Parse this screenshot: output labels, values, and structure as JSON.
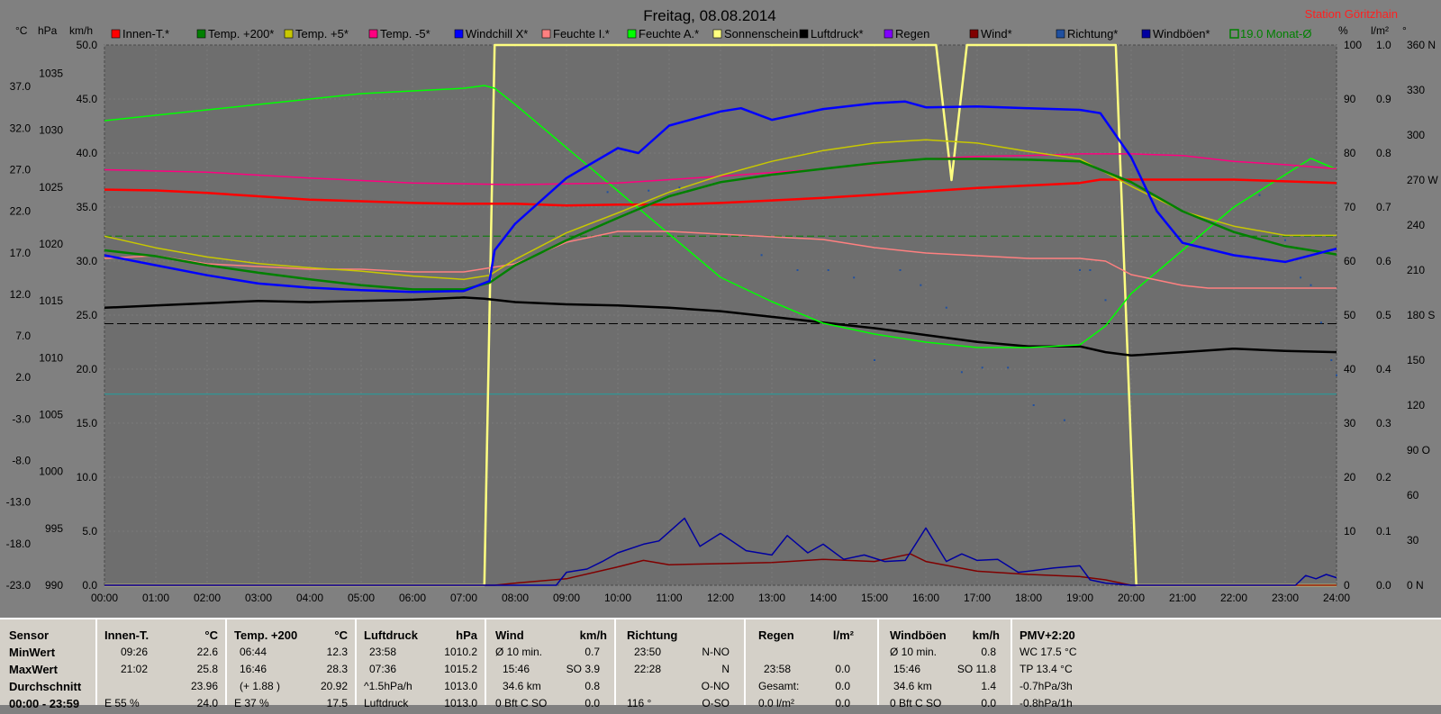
{
  "header": {
    "title": "Freitag, 08.08.2014",
    "station": "Station Göritzhain"
  },
  "axis_units": {
    "temp": "°C",
    "hpa": "hPa",
    "kmh": "km/h",
    "pct": "%",
    "lm2": "l/m²",
    "deg": "°"
  },
  "legend": [
    {
      "label": "Innen-T.*",
      "color": "#ff0000"
    },
    {
      "label": "Temp. +200*",
      "color": "#008000"
    },
    {
      "label": "Temp. +5*",
      "color": "#c8c800"
    },
    {
      "label": "Temp. -5*",
      "color": "#ff0080"
    },
    {
      "label": "Windchill X*",
      "color": "#0000ff"
    },
    {
      "label": "Feuchte I.*",
      "color": "#ff8080"
    },
    {
      "label": "Feuchte A.*",
      "color": "#00ff00"
    },
    {
      "label": "Sonnenschein",
      "color": "#ffff80"
    },
    {
      "label": "Luftdruck*",
      "color": "#000000"
    },
    {
      "label": "Regen",
      "color": "#8000ff"
    },
    {
      "label": "Wind*",
      "color": "#800000"
    },
    {
      "label": "Richtung*",
      "color": "#2050a0"
    },
    {
      "label": "Windböen*",
      "color": "#0000a0"
    },
    {
      "label": "19.0 Monat-Ø",
      "color": "#008000"
    }
  ],
  "chart_data": {
    "type": "line",
    "title": "Freitag, 08.08.2014",
    "x_ticks": [
      "00:00",
      "01:00",
      "02:00",
      "03:00",
      "04:00",
      "05:00",
      "06:00",
      "07:00",
      "08:00",
      "09:00",
      "10:00",
      "11:00",
      "12:00",
      "13:00",
      "14:00",
      "15:00",
      "16:00",
      "17:00",
      "18:00",
      "19:00",
      "20:00",
      "21:00",
      "22:00",
      "23:00",
      "24:00"
    ],
    "xlim": [
      0,
      24
    ],
    "y_axes": {
      "temp_c": {
        "ylim": [
          -23,
          42
        ],
        "ticks": [
          "37.0",
          "32.0",
          "27.0",
          "22.0",
          "17.0",
          "12.0",
          "7.0",
          "2.0",
          "-3.0",
          "-8.0",
          "-13.0",
          "-18.0",
          "-23.0"
        ]
      },
      "hpa": {
        "ylim": [
          990,
          1037.5
        ],
        "ticks": [
          "1035",
          "1030",
          "1025",
          "1020",
          "1015",
          "1010",
          "1005",
          "1000",
          "995",
          "990"
        ]
      },
      "kmh": {
        "ylim": [
          0,
          50
        ],
        "ticks": [
          "50.0",
          "45.0",
          "40.0",
          "35.0",
          "30.0",
          "25.0",
          "20.0",
          "15.0",
          "10.0",
          "5.0",
          "0.0"
        ]
      },
      "pct": {
        "ylim": [
          0,
          100
        ],
        "ticks": [
          "100",
          "90",
          "80",
          "70",
          "60",
          "50",
          "40",
          "30",
          "20",
          "10",
          "0"
        ]
      },
      "lm2": {
        "ylim": [
          0,
          1
        ],
        "ticks": [
          "1.0",
          "0.9",
          "0.8",
          "0.7",
          "0.6",
          "0.5",
          "0.4",
          "0.3",
          "0.2",
          "0.1",
          "0.0"
        ]
      },
      "deg": {
        "ylim": [
          0,
          360
        ],
        "ticks": [
          "360 N",
          "330",
          "300",
          "270 W",
          "240",
          "210",
          "180 S",
          "150",
          "120",
          "90 O",
          "60",
          "30",
          "0 N"
        ]
      }
    },
    "reference_lines": [
      {
        "name": "19.0 Monat-Ø",
        "axis": "temp_c",
        "value": 19.0,
        "color": "#008000"
      },
      {
        "axis": "hpa",
        "value": 1013.0,
        "color": "#000000"
      },
      {
        "axis": "temp_c",
        "value": 0.0,
        "color": "#20a0a0"
      }
    ],
    "series": [
      {
        "name": "Innen-T.*",
        "axis": "temp_c",
        "color": "#ff0000",
        "x": [
          0,
          1,
          2,
          3,
          4,
          5,
          6,
          7,
          8,
          9,
          10,
          11,
          12,
          13,
          14,
          15,
          16,
          17,
          18,
          19,
          19.4,
          20,
          21,
          22,
          23,
          24
        ],
        "y": [
          24.6,
          24.5,
          24.2,
          23.8,
          23.4,
          23.2,
          23.0,
          22.9,
          22.9,
          22.7,
          22.8,
          22.8,
          23.0,
          23.3,
          23.6,
          24.0,
          24.4,
          24.8,
          25.1,
          25.4,
          25.8,
          25.8,
          25.8,
          25.8,
          25.6,
          25.4
        ]
      },
      {
        "name": "Temp. +200*",
        "axis": "temp_c",
        "color": "#008000",
        "x": [
          0,
          1,
          2,
          3,
          4,
          5,
          6,
          7,
          7.5,
          8,
          9,
          10,
          11,
          12,
          13,
          14,
          15,
          16,
          17,
          18,
          19,
          20,
          21,
          22,
          23,
          24
        ],
        "y": [
          17.3,
          16.6,
          15.5,
          14.6,
          13.8,
          13.1,
          12.6,
          12.6,
          13.4,
          15.5,
          18.5,
          21.2,
          23.8,
          25.5,
          26.4,
          27.1,
          27.8,
          28.3,
          28.3,
          28.2,
          28.0,
          25.5,
          22.0,
          19.5,
          17.8,
          16.8
        ]
      },
      {
        "name": "Temp. +5*",
        "axis": "temp_c",
        "color": "#c8c800",
        "x": [
          0,
          1,
          2,
          3,
          4,
          5,
          6,
          7,
          7.5,
          8,
          9,
          10,
          11,
          12,
          13,
          14,
          15,
          16,
          17,
          18,
          19,
          20,
          21,
          22,
          23,
          24
        ],
        "y": [
          19.0,
          17.6,
          16.5,
          15.7,
          15.2,
          14.8,
          14.2,
          13.8,
          14.3,
          16.2,
          19.4,
          21.8,
          24.3,
          26.3,
          28.0,
          29.3,
          30.2,
          30.6,
          30.2,
          29.2,
          28.3,
          25.0,
          22.0,
          20.2,
          19.1,
          19.1
        ]
      },
      {
        "name": "Temp. -5*",
        "axis": "temp_c",
        "color": "#ff0080",
        "x": [
          0,
          2,
          4,
          6,
          8,
          10,
          12,
          14,
          16,
          17,
          18,
          19,
          20,
          21,
          22,
          23,
          24
        ],
        "y": [
          27.0,
          26.7,
          26.0,
          25.4,
          25.2,
          25.4,
          26.2,
          27.1,
          28.3,
          28.6,
          28.7,
          28.9,
          28.9,
          28.7,
          28.0,
          27.6,
          27.1
        ]
      },
      {
        "name": "Windchill X*",
        "axis": "temp_c",
        "color": "#0000ff",
        "x": [
          0,
          1,
          2,
          3,
          4,
          5,
          6,
          7,
          7.5,
          7.6,
          8,
          9,
          10,
          10.4,
          11,
          12,
          12.4,
          13,
          14,
          15,
          15.6,
          16,
          17,
          18,
          19,
          19.4,
          20,
          20.5,
          21,
          22,
          23,
          24
        ],
        "y": [
          16.7,
          15.5,
          14.3,
          13.3,
          12.8,
          12.5,
          12.3,
          12.4,
          13.6,
          17.3,
          20.5,
          26.0,
          29.6,
          29.0,
          32.3,
          34.0,
          34.4,
          33.0,
          34.3,
          35.0,
          35.2,
          34.5,
          34.6,
          34.4,
          34.2,
          33.8,
          28.5,
          22.0,
          18.2,
          16.7,
          15.9,
          17.5
        ]
      },
      {
        "name": "Feuchte I.*",
        "axis": "pct",
        "color": "#ff8080",
        "x": [
          0,
          1,
          2,
          3,
          4,
          5,
          6,
          7,
          8,
          9,
          10,
          11,
          12,
          13,
          14,
          15,
          16,
          17,
          18,
          19,
          19.5,
          20,
          21,
          21.5,
          22,
          23,
          24
        ],
        "y": [
          60.5,
          61.0,
          59.5,
          59.0,
          58.5,
          58.5,
          58.0,
          58.0,
          59.5,
          63.5,
          65.5,
          65.5,
          65.0,
          64.5,
          64.0,
          62.5,
          61.5,
          61.0,
          60.5,
          60.5,
          60.0,
          57.5,
          55.5,
          55.0,
          55.0,
          55.0,
          55.0
        ]
      },
      {
        "name": "Feuchte A.*",
        "axis": "pct",
        "color": "#00ff00",
        "x": [
          0,
          1,
          2,
          3,
          4,
          5,
          6,
          7,
          7.4,
          7.6,
          8,
          9,
          10,
          11,
          12,
          13,
          14,
          15,
          16,
          17,
          18,
          19,
          19.5,
          20,
          21,
          22,
          23,
          23.5,
          24
        ],
        "y": [
          86.0,
          87.0,
          88.0,
          89.0,
          90.0,
          91.0,
          91.5,
          92.0,
          92.5,
          92.0,
          89.0,
          81.0,
          73.0,
          65.0,
          57.0,
          52.5,
          48.5,
          46.5,
          45.0,
          44.0,
          44.0,
          44.5,
          48.0,
          54.0,
          62.0,
          70.0,
          76.0,
          79.0,
          77.0
        ]
      },
      {
        "name": "Sonnenschein",
        "axis": "pct",
        "color": "#ffff80",
        "x": [
          0,
          7.4,
          7.6,
          16.2,
          16.5,
          16.8,
          19.7,
          20.1,
          24
        ],
        "y": [
          0,
          0,
          100,
          100,
          75,
          100,
          100,
          0,
          0
        ]
      },
      {
        "name": "Luftdruck*",
        "axis": "hpa",
        "color": "#000000",
        "x": [
          0,
          1,
          2,
          3,
          4,
          5,
          6,
          7,
          7.4,
          8,
          9,
          10,
          11,
          12,
          13,
          14,
          15,
          16,
          17,
          18,
          19,
          19.5,
          20,
          21,
          22,
          23,
          24
        ],
        "y": [
          1014.4,
          1014.6,
          1014.8,
          1015.0,
          1014.9,
          1015.0,
          1015.1,
          1015.3,
          1015.2,
          1014.9,
          1014.7,
          1014.6,
          1014.4,
          1014.1,
          1013.6,
          1013.1,
          1012.6,
          1012.0,
          1011.4,
          1011.0,
          1011.0,
          1010.5,
          1010.2,
          1010.5,
          1010.8,
          1010.6,
          1010.5
        ]
      },
      {
        "name": "Wind*",
        "axis": "kmh",
        "color": "#800000",
        "x": [
          0,
          7.6,
          8,
          9,
          10,
          10.5,
          11,
          12,
          13,
          14,
          15,
          15.7,
          16,
          17,
          18,
          19,
          19.5,
          20,
          24
        ],
        "y": [
          0,
          0,
          0.2,
          0.6,
          1.7,
          2.3,
          1.9,
          2.0,
          2.1,
          2.4,
          2.2,
          2.9,
          2.2,
          1.3,
          1.0,
          0.8,
          0.5,
          0,
          0
        ]
      },
      {
        "name": "Windböen*",
        "axis": "kmh",
        "color": "#0000a0",
        "x": [
          0,
          8.8,
          9,
          9.4,
          9.7,
          10,
          10.5,
          10.8,
          11.3,
          11.6,
          12,
          12.5,
          13,
          13.3,
          13.7,
          14,
          14.4,
          14.8,
          15.2,
          15.6,
          16,
          16.4,
          16.7,
          17,
          17.4,
          17.8,
          18,
          18.5,
          19,
          19.2,
          19.5,
          20,
          23.2,
          23.4,
          23.6,
          23.8,
          24
        ],
        "y": [
          0,
          0,
          1.2,
          1.5,
          2.2,
          3.0,
          3.8,
          4.1,
          6.2,
          3.6,
          4.8,
          3.2,
          2.8,
          4.6,
          3.0,
          3.8,
          2.4,
          2.8,
          2.2,
          2.3,
          5.3,
          2.2,
          2.9,
          2.3,
          2.4,
          1.2,
          1.3,
          1.6,
          1.8,
          0.5,
          0.2,
          0,
          0,
          0.9,
          0.6,
          1.0,
          0.7
        ]
      }
    ],
    "scatter_series": [
      {
        "name": "Richtung*",
        "axis": "deg",
        "color": "#2050a0",
        "x": [
          9.8,
          10.6,
          11.2,
          12.8,
          13.5,
          14.1,
          14.6,
          15.0,
          15.5,
          15.9,
          16.4,
          16.7,
          17.1,
          17.6,
          18.1,
          18.7,
          19.0,
          19.2,
          19.5,
          22.5,
          23.0,
          23.3,
          23.5,
          23.7,
          23.9,
          24.0
        ],
        "y": [
          262,
          263,
          265,
          220,
          210,
          210,
          205,
          150,
          210,
          200,
          185,
          142,
          145,
          145,
          120,
          110,
          210,
          210,
          190,
          260,
          230,
          205,
          200,
          175,
          150,
          140
        ]
      }
    ]
  },
  "stats": {
    "sensor": {
      "head": "Sensor",
      "rows": [
        "MinWert",
        "MaxWert",
        "Durchschnitt",
        "00:00 - 23:59"
      ]
    },
    "innen": {
      "head": "Innen-T.",
      "unit": "°C",
      "rows": [
        [
          "09:26",
          "22.6"
        ],
        [
          "21:02",
          "25.8"
        ],
        [
          "",
          "23.96"
        ],
        [
          "E 55 %",
          "24.0"
        ]
      ]
    },
    "temp200": {
      "head": "Temp. +200",
      "unit": "°C",
      "rows": [
        [
          "06:44",
          "12.3"
        ],
        [
          "16:46",
          "28.3"
        ],
        [
          "(+ 1.88 )",
          "20.92"
        ],
        [
          "E 37 %",
          "17.5"
        ]
      ]
    },
    "luftdruck": {
      "head": "Luftdruck",
      "unit": "hPa",
      "rows": [
        [
          "23:58",
          "1010.2"
        ],
        [
          "07:36",
          "1015.2"
        ],
        [
          "^1.5hPa/h",
          "1013.0"
        ],
        [
          "Luftdruck",
          "1013.0"
        ]
      ]
    },
    "wind": {
      "head": "Wind",
      "unit": "km/h",
      "rows": [
        [
          "Ø 10 min.",
          "0.7"
        ],
        [
          "15:46",
          "SO 3.9"
        ],
        [
          "34.6 km",
          "0.8"
        ],
        [
          "0 Bft C SO",
          "0.0"
        ]
      ]
    },
    "richtung": {
      "head": "Richtung",
      "rows": [
        [
          "23:50",
          "N-NO"
        ],
        [
          "22:28",
          "N"
        ],
        [
          "",
          "O-NO"
        ],
        [
          "116 °",
          "O-SO"
        ]
      ]
    },
    "regen": {
      "head": "Regen",
      "unit": "l/m²",
      "rows": [
        [
          "",
          ""
        ],
        [
          "23:58",
          "0.0"
        ],
        [
          "Gesamt:",
          "0.0"
        ],
        [
          "0.0 l/m²",
          "0.0"
        ]
      ]
    },
    "boeen": {
      "head": "Windböen",
      "unit": "km/h",
      "rows": [
        [
          "Ø 10 min.",
          "0.8"
        ],
        [
          "15:46",
          "SO 11.8"
        ],
        [
          "34.6 km",
          "1.4"
        ],
        [
          "0 Bft C SO",
          "0.0"
        ]
      ]
    },
    "pmv": {
      "head": "PMV+2:20",
      "rows": [
        "WC 17.5 °C",
        "TP 13.4 °C",
        "-0.7hPa/3h",
        "-0.8hPa/1h"
      ]
    }
  }
}
